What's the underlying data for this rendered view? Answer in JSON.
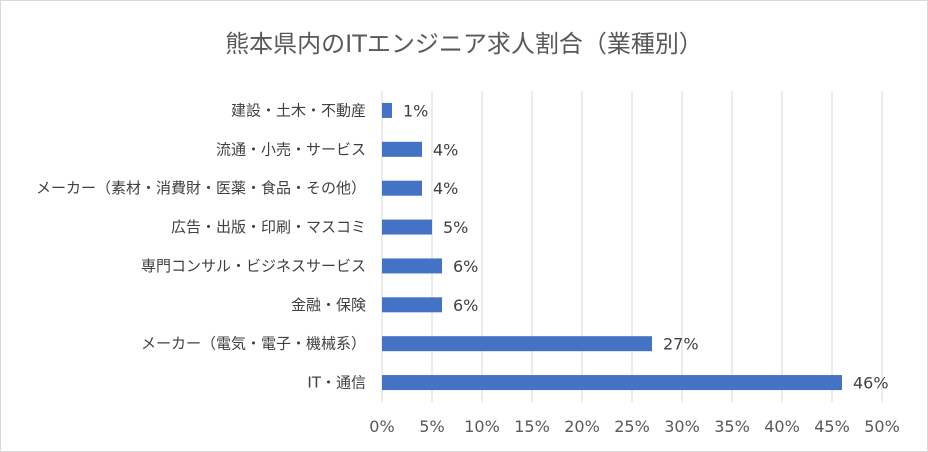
{
  "chart_data": {
    "type": "bar",
    "orientation": "horizontal",
    "title": "熊本県内のITエンジニア求人割合（業種別）",
    "categories": [
      "建設・土木・不動産",
      "流通・小売・サービス",
      "メーカー（素材・消費財・医薬・食品・その他）",
      "広告・出版・印刷・マスコミ",
      "専門コンサル・ビジネスサービス",
      "金融・保険",
      "メーカー（電気・電子・機械系）",
      "IT・通信"
    ],
    "values": [
      1,
      4,
      4,
      5,
      6,
      6,
      27,
      46
    ],
    "data_labels": [
      "1%",
      "4%",
      "4%",
      "5%",
      "6%",
      "6%",
      "27%",
      "46%"
    ],
    "xlim": [
      0,
      50
    ],
    "xticks": [
      "0%",
      "5%",
      "10%",
      "15%",
      "20%",
      "25%",
      "30%",
      "35%",
      "40%",
      "45%",
      "50%"
    ],
    "grid": "vertical",
    "bar_color": "#4472c4",
    "grid_color": "#d9d9d9"
  }
}
